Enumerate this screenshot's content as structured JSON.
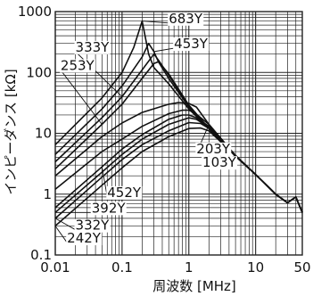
{
  "chart_data": {
    "type": "line",
    "title": "",
    "xlabel": "周波数 [MHz]",
    "ylabel": "インピーダンス [kΩ]",
    "x_scale": "log",
    "y_scale": "log",
    "xlim": [
      0.01,
      50
    ],
    "ylim": [
      0.1,
      1000
    ],
    "grid": true,
    "x_ticks": [
      {
        "value": 0.01,
        "label": "0.01"
      },
      {
        "value": 0.1,
        "label": "0.1"
      },
      {
        "value": 1,
        "label": "1"
      },
      {
        "value": 10,
        "label": "10"
      },
      {
        "value": 50,
        "label": "50"
      }
    ],
    "y_ticks": [
      {
        "value": 0.1,
        "label": "0.1"
      },
      {
        "value": 1,
        "label": "1"
      },
      {
        "value": 10,
        "label": "10"
      },
      {
        "value": 100,
        "label": "100"
      },
      {
        "value": 1000,
        "label": "1000"
      }
    ],
    "series": [
      {
        "name": "683Y",
        "x": [
          0.01,
          0.05,
          0.1,
          0.15,
          0.2,
          0.25,
          0.3,
          0.5,
          1,
          2,
          5,
          10,
          20,
          30,
          40,
          50
        ],
        "y": [
          6.5,
          38,
          100,
          260,
          700,
          200,
          120,
          65,
          25,
          12,
          4.2,
          2.1,
          1.0,
          0.72,
          0.9,
          0.5
        ]
      },
      {
        "name": "453Y",
        "x": [
          0.01,
          0.05,
          0.1,
          0.2,
          0.25,
          0.3,
          0.35,
          0.5,
          1,
          2,
          5,
          10,
          20,
          30,
          40,
          50
        ],
        "y": [
          4.5,
          25,
          60,
          180,
          300,
          220,
          150,
          80,
          27,
          12,
          4.2,
          2.1,
          1.0,
          0.72,
          0.9,
          0.5
        ]
      },
      {
        "name": "333Y",
        "x": [
          0.01,
          0.05,
          0.1,
          0.2,
          0.3,
          0.35,
          0.5,
          1,
          2,
          5,
          10,
          20,
          30,
          40,
          50
        ],
        "y": [
          3.4,
          18,
          40,
          110,
          200,
          160,
          90,
          28,
          12,
          4.2,
          2.1,
          1.0,
          0.72,
          0.9,
          0.5
        ]
      },
      {
        "name": "253Y",
        "x": [
          0.01,
          0.05,
          0.1,
          0.2,
          0.3,
          0.35,
          0.5,
          1,
          2,
          5,
          10,
          20,
          30,
          40,
          50
        ],
        "y": [
          2.6,
          14,
          30,
          80,
          140,
          150,
          95,
          29,
          12,
          4.2,
          2.1,
          1.0,
          0.72,
          0.9,
          0.5
        ]
      },
      {
        "name": "203Y",
        "x": [
          0.01,
          0.05,
          0.1,
          0.2,
          0.5,
          0.7,
          1,
          1.3,
          2,
          5,
          10,
          20,
          30,
          40,
          50
        ],
        "y": [
          2.0,
          8.8,
          14.8,
          22,
          30,
          32,
          31,
          27,
          14,
          4.3,
          2.1,
          1.0,
          0.72,
          0.9,
          0.5
        ]
      },
      {
        "name": "103Y",
        "x": [
          0.01,
          0.05,
          0.1,
          0.2,
          0.5,
          0.8,
          1,
          1.2,
          2,
          5,
          10,
          20,
          30,
          40,
          50
        ],
        "y": [
          1.2,
          5.0,
          8.0,
          13,
          21,
          24,
          24,
          22,
          14,
          4.3,
          2.1,
          1.0,
          0.72,
          0.9,
          0.5
        ]
      },
      {
        "name": "452Y",
        "x": [
          0.01,
          0.05,
          0.1,
          0.2,
          0.5,
          0.8,
          1,
          1.3,
          2,
          5,
          10,
          20,
          30,
          40,
          50
        ],
        "y": [
          0.6,
          2.8,
          5.5,
          9.5,
          17,
          20,
          20,
          18,
          13,
          4.3,
          2.1,
          1.0,
          0.72,
          0.9,
          0.5
        ]
      },
      {
        "name": "392Y",
        "x": [
          0.01,
          0.05,
          0.1,
          0.2,
          0.5,
          1,
          1.3,
          2,
          5,
          10,
          20,
          30,
          40,
          50
        ],
        "y": [
          0.5,
          2.3,
          4.5,
          8.0,
          14,
          18,
          17,
          12.5,
          4.3,
          2.1,
          1.0,
          0.72,
          0.9,
          0.5
        ]
      },
      {
        "name": "332Y",
        "x": [
          0.01,
          0.05,
          0.1,
          0.2,
          0.5,
          1,
          1.5,
          2,
          5,
          10,
          20,
          30,
          40,
          50
        ],
        "y": [
          0.4,
          1.9,
          3.7,
          6.5,
          11,
          15,
          14.5,
          12,
          4.3,
          2.1,
          1.0,
          0.72,
          0.9,
          0.5
        ]
      },
      {
        "name": "242Y",
        "x": [
          0.01,
          0.05,
          0.1,
          0.2,
          0.5,
          1,
          1.5,
          2,
          5,
          10,
          20,
          30,
          40,
          50
        ],
        "y": [
          0.3,
          1.4,
          2.7,
          5.0,
          8.8,
          12,
          12.2,
          11,
          4.3,
          2.1,
          1.0,
          0.72,
          0.9,
          0.5
        ]
      }
    ],
    "series_labels": [
      {
        "text": "683Y",
        "anchor": [
          0.5,
          650
        ]
      },
      {
        "text": "453Y",
        "anchor": [
          0.6,
          250
        ]
      },
      {
        "text": "333Y",
        "anchor": [
          0.02,
          220
        ]
      },
      {
        "text": "253Y",
        "anchor": [
          0.012,
          110
        ]
      },
      {
        "text": "203Y",
        "anchor": [
          1.3,
          4.7
        ]
      },
      {
        "text": "103Y",
        "anchor": [
          1.6,
          2.8
        ]
      },
      {
        "text": "452Y",
        "anchor": [
          0.06,
          0.9
        ]
      },
      {
        "text": "392Y",
        "anchor": [
          0.035,
          0.5
        ]
      },
      {
        "text": "332Y",
        "anchor": [
          0.02,
          0.26
        ]
      },
      {
        "text": "242Y",
        "anchor": [
          0.015,
          0.16
        ]
      }
    ],
    "line_color": "#111111",
    "grid_color": "#222222"
  }
}
